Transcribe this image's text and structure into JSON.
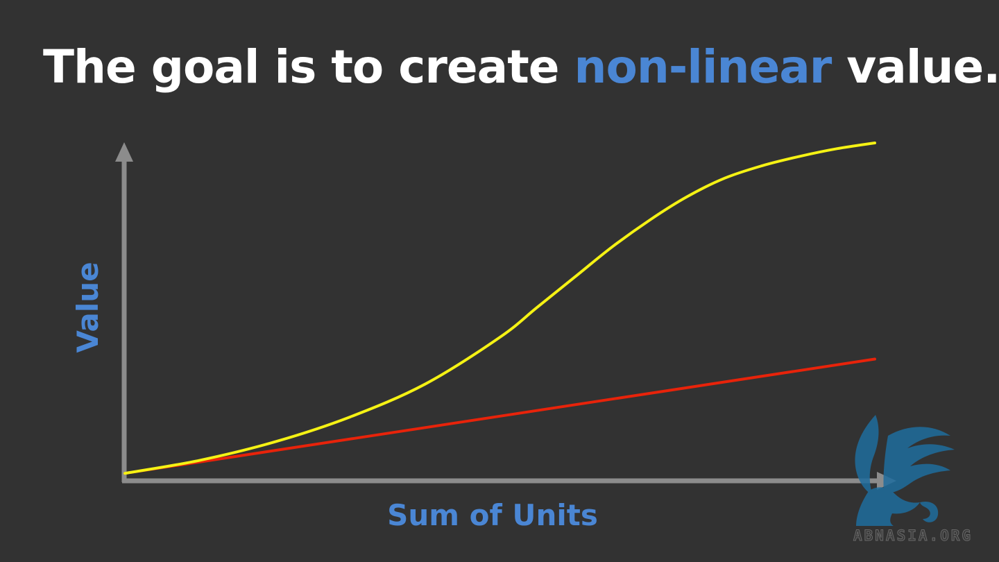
{
  "slide": {
    "title_prefix": "The goal is to create ",
    "title_accent": "non-linear",
    "title_suffix": " value.",
    "watermark": "ABNASIA.ORG"
  },
  "colors": {
    "background": "#323232",
    "accent": "#4a86d4",
    "axis": "#8c8c8c",
    "linear_series": "#e8230a",
    "nonlinear_series": "#f5f214"
  },
  "chart_data": {
    "type": "line",
    "title": "",
    "xlabel": "Sum of Units",
    "ylabel": "Value",
    "xlim": [
      0,
      100
    ],
    "ylim": [
      0,
      100
    ],
    "grid": false,
    "legend": "none",
    "series": [
      {
        "color": "#e8230a",
        "x": [
          0,
          100
        ],
        "y": [
          1.4,
          35.5
        ]
      },
      {
        "color": "#f5f214",
        "x": [
          0,
          10,
          20,
          30,
          40,
          50,
          55,
          60,
          65,
          70,
          75,
          80,
          85,
          90,
          95,
          100
        ],
        "y": [
          1.4,
          5.3,
          10.8,
          18.2,
          28.0,
          42.0,
          51.0,
          60.0,
          69.0,
          77.0,
          84.0,
          89.5,
          93.2,
          96.0,
          98.3,
          100
        ]
      }
    ]
  }
}
